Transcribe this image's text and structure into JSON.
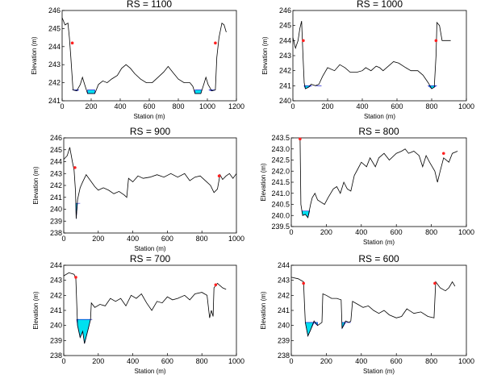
{
  "chart_data": [
    {
      "type": "line",
      "title": "RS = 1100",
      "xlabel": "Station (m)",
      "ylabel": "Elevation (m)",
      "xlim": [
        0,
        1200
      ],
      "ylim": [
        241,
        246
      ],
      "xticks": [
        0,
        200,
        400,
        600,
        800,
        1000,
        1200
      ],
      "yticks": [
        241,
        242,
        243,
        244,
        245,
        246
      ],
      "ground": [
        [
          0,
          245.6
        ],
        [
          20,
          245.2
        ],
        [
          40,
          245.3
        ],
        [
          50,
          244.5
        ],
        [
          60,
          243.4
        ],
        [
          75,
          241.6
        ],
        [
          100,
          241.55
        ],
        [
          125,
          241.9
        ],
        [
          140,
          242.3
        ],
        [
          155,
          241.9
        ],
        [
          175,
          241.4
        ],
        [
          225,
          241.4
        ],
        [
          250,
          241.9
        ],
        [
          280,
          242.1
        ],
        [
          310,
          242.0
        ],
        [
          340,
          242.2
        ],
        [
          380,
          242.4
        ],
        [
          410,
          242.8
        ],
        [
          440,
          243.0
        ],
        [
          470,
          242.8
        ],
        [
          500,
          242.5
        ],
        [
          540,
          242.2
        ],
        [
          580,
          242.0
        ],
        [
          620,
          242.0
        ],
        [
          660,
          242.3
        ],
        [
          700,
          242.6
        ],
        [
          730,
          242.9
        ],
        [
          760,
          242.6
        ],
        [
          800,
          242.2
        ],
        [
          840,
          242.0
        ],
        [
          880,
          242.0
        ],
        [
          900,
          241.8
        ],
        [
          915,
          241.4
        ],
        [
          955,
          241.4
        ],
        [
          975,
          241.9
        ],
        [
          990,
          242.3
        ],
        [
          1005,
          241.9
        ],
        [
          1030,
          241.55
        ],
        [
          1055,
          241.6
        ],
        [
          1065,
          243.4
        ],
        [
          1080,
          244.5
        ],
        [
          1100,
          245.3
        ],
        [
          1115,
          245.2
        ],
        [
          1130,
          244.8
        ]
      ],
      "water": [
        [
          70,
          115,
          241.6
        ],
        [
          175,
          225,
          241.6
        ],
        [
          915,
          960,
          241.6
        ],
        [
          1010,
          1055,
          241.6
        ]
      ],
      "markers": [
        [
          70,
          244.2
        ],
        [
          1055,
          244.2
        ]
      ]
    },
    {
      "type": "line",
      "title": "RS = 1000",
      "xlabel": "Station (m)",
      "ylabel": "Elevation (m)",
      "xlim": [
        0,
        1000
      ],
      "ylim": [
        240,
        246
      ],
      "xticks": [
        0,
        200,
        400,
        600,
        800,
        1000
      ],
      "yticks": [
        240,
        241,
        242,
        243,
        244,
        245,
        246
      ],
      "ground": [
        [
          0,
          244.2
        ],
        [
          15,
          243.5
        ],
        [
          30,
          244.0
        ],
        [
          40,
          244.8
        ],
        [
          50,
          245.3
        ],
        [
          58,
          243.0
        ],
        [
          65,
          241.2
        ],
        [
          72,
          240.8
        ],
        [
          90,
          240.9
        ],
        [
          105,
          241.1
        ],
        [
          130,
          241.0
        ],
        [
          150,
          241.1
        ],
        [
          170,
          241.6
        ],
        [
          200,
          242.2
        ],
        [
          240,
          242.0
        ],
        [
          270,
          242.4
        ],
        [
          300,
          242.2
        ],
        [
          330,
          241.9
        ],
        [
          370,
          241.9
        ],
        [
          400,
          242.0
        ],
        [
          420,
          242.2
        ],
        [
          450,
          242.0
        ],
        [
          480,
          242.3
        ],
        [
          500,
          242.2
        ],
        [
          520,
          242.0
        ],
        [
          550,
          242.3
        ],
        [
          580,
          242.6
        ],
        [
          610,
          242.5
        ],
        [
          650,
          242.2
        ],
        [
          680,
          242.0
        ],
        [
          720,
          242.0
        ],
        [
          750,
          241.7
        ],
        [
          780,
          241.2
        ],
        [
          800,
          240.8
        ],
        [
          815,
          240.9
        ],
        [
          825,
          243.0
        ],
        [
          830,
          245.2
        ],
        [
          845,
          245.0
        ],
        [
          860,
          244.0
        ],
        [
          890,
          244.0
        ],
        [
          910,
          244.0
        ]
      ],
      "water": [
        [
          65,
          110,
          241.0
        ],
        [
          130,
          165,
          241.0
        ],
        [
          780,
          830,
          241.0
        ]
      ],
      "markers": [
        [
          60,
          244.0
        ],
        [
          825,
          244.0
        ]
      ]
    },
    {
      "type": "line",
      "title": "RS = 900",
      "xlabel": "Station (m)",
      "ylabel": "Elevation (m)",
      "xlim": [
        0,
        1000
      ],
      "ylim": [
        238,
        246
      ],
      "xticks": [
        0,
        200,
        400,
        600,
        800,
        1000
      ],
      "yticks": [
        238,
        239,
        240,
        241,
        242,
        243,
        244,
        245,
        246
      ],
      "ground": [
        [
          0,
          244.2
        ],
        [
          20,
          244.5
        ],
        [
          35,
          245.2
        ],
        [
          50,
          244.0
        ],
        [
          60,
          243.3
        ],
        [
          68,
          241.5
        ],
        [
          72,
          239.2
        ],
        [
          80,
          240.8
        ],
        [
          95,
          241.8
        ],
        [
          110,
          242.3
        ],
        [
          130,
          242.9
        ],
        [
          150,
          242.5
        ],
        [
          180,
          241.9
        ],
        [
          200,
          241.6
        ],
        [
          230,
          241.8
        ],
        [
          260,
          241.6
        ],
        [
          290,
          241.3
        ],
        [
          320,
          241.5
        ],
        [
          350,
          241.2
        ],
        [
          365,
          241.0
        ],
        [
          375,
          242.6
        ],
        [
          400,
          242.3
        ],
        [
          430,
          242.8
        ],
        [
          460,
          242.6
        ],
        [
          500,
          242.7
        ],
        [
          540,
          242.9
        ],
        [
          580,
          242.7
        ],
        [
          620,
          243.0
        ],
        [
          660,
          242.7
        ],
        [
          700,
          243.0
        ],
        [
          730,
          242.4
        ],
        [
          760,
          242.7
        ],
        [
          790,
          242.8
        ],
        [
          820,
          242.4
        ],
        [
          850,
          242.0
        ],
        [
          870,
          241.4
        ],
        [
          890,
          241.7
        ],
        [
          905,
          242.9
        ],
        [
          920,
          242.5
        ],
        [
          940,
          242.8
        ],
        [
          960,
          243.0
        ],
        [
          980,
          242.6
        ],
        [
          1000,
          243.0
        ]
      ],
      "water": [
        [
          70,
          95,
          240.5
        ]
      ],
      "markers": [
        [
          65,
          243.5
        ],
        [
          900,
          242.8
        ]
      ]
    },
    {
      "type": "line",
      "title": "RS = 800",
      "xlabel": "Station (m)",
      "ylabel": "Elevation (m)",
      "xlim": [
        0,
        1000
      ],
      "ylim": [
        239.5,
        243.5
      ],
      "xticks": [
        0,
        200,
        400,
        600,
        800,
        1000
      ],
      "yticks": [
        239.5,
        240.0,
        240.5,
        241.0,
        241.5,
        242.0,
        242.5,
        243.0,
        243.5
      ],
      "ground": [
        [
          50,
          243.45
        ],
        [
          55,
          240.5
        ],
        [
          65,
          240.0
        ],
        [
          80,
          240.05
        ],
        [
          95,
          239.9
        ],
        [
          110,
          240.5
        ],
        [
          120,
          240.8
        ],
        [
          135,
          241.0
        ],
        [
          150,
          240.7
        ],
        [
          170,
          240.6
        ],
        [
          190,
          240.5
        ],
        [
          210,
          240.8
        ],
        [
          240,
          241.2
        ],
        [
          260,
          241.3
        ],
        [
          280,
          241.0
        ],
        [
          300,
          241.5
        ],
        [
          320,
          241.2
        ],
        [
          340,
          241.1
        ],
        [
          360,
          241.8
        ],
        [
          380,
          242.1
        ],
        [
          400,
          242.4
        ],
        [
          430,
          242.2
        ],
        [
          450,
          242.6
        ],
        [
          480,
          242.2
        ],
        [
          500,
          242.6
        ],
        [
          530,
          242.8
        ],
        [
          560,
          242.5
        ],
        [
          600,
          242.8
        ],
        [
          630,
          242.9
        ],
        [
          650,
          243.0
        ],
        [
          670,
          242.8
        ],
        [
          700,
          242.9
        ],
        [
          730,
          242.7
        ],
        [
          750,
          242.2
        ],
        [
          770,
          242.7
        ],
        [
          790,
          242.4
        ],
        [
          820,
          242.0
        ],
        [
          835,
          241.5
        ],
        [
          850,
          242.0
        ],
        [
          870,
          242.6
        ],
        [
          900,
          242.4
        ],
        [
          920,
          242.8
        ],
        [
          950,
          242.9
        ]
      ],
      "water": [
        [
          60,
          105,
          240.2
        ]
      ],
      "markers": [
        [
          50,
          243.45
        ],
        [
          870,
          242.8
        ]
      ]
    },
    {
      "type": "line",
      "title": "RS = 700",
      "xlabel": "Station (m)",
      "ylabel": "Elevation (m)",
      "xlim": [
        0,
        1000
      ],
      "ylim": [
        238,
        244
      ],
      "xticks": [
        0,
        200,
        400,
        600,
        800,
        1000
      ],
      "yticks": [
        238,
        239,
        240,
        241,
        242,
        243,
        244
      ],
      "ground": [
        [
          0,
          243.3
        ],
        [
          30,
          243.5
        ],
        [
          60,
          243.4
        ],
        [
          70,
          243.1
        ],
        [
          80,
          240.0
        ],
        [
          95,
          239.2
        ],
        [
          110,
          239.6
        ],
        [
          120,
          238.8
        ],
        [
          140,
          239.7
        ],
        [
          155,
          240.4
        ],
        [
          160,
          241.5
        ],
        [
          180,
          241.2
        ],
        [
          210,
          241.4
        ],
        [
          240,
          241.3
        ],
        [
          270,
          241.8
        ],
        [
          300,
          241.6
        ],
        [
          330,
          241.8
        ],
        [
          360,
          241.3
        ],
        [
          390,
          242.0
        ],
        [
          420,
          241.8
        ],
        [
          450,
          242.1
        ],
        [
          480,
          241.5
        ],
        [
          510,
          241.0
        ],
        [
          540,
          241.6
        ],
        [
          570,
          241.5
        ],
        [
          600,
          241.9
        ],
        [
          630,
          241.7
        ],
        [
          660,
          241.8
        ],
        [
          700,
          242.0
        ],
        [
          730,
          241.7
        ],
        [
          760,
          242.1
        ],
        [
          800,
          242.2
        ],
        [
          830,
          242.0
        ],
        [
          845,
          240.5
        ],
        [
          855,
          241.0
        ],
        [
          865,
          240.6
        ],
        [
          870,
          242.5
        ],
        [
          890,
          242.8
        ],
        [
          920,
          242.5
        ],
        [
          940,
          242.4
        ]
      ],
      "water": [
        [
          75,
          165,
          240.4
        ]
      ],
      "markers": [
        [
          70,
          243.2
        ],
        [
          880,
          242.7
        ]
      ]
    },
    {
      "type": "line",
      "title": "RS = 600",
      "xlabel": "Station (m)",
      "ylabel": "Elevation (m)",
      "xlim": [
        0,
        1000
      ],
      "ylim": [
        238,
        244
      ],
      "xticks": [
        0,
        200,
        400,
        600,
        800,
        1000
      ],
      "yticks": [
        238,
        239,
        240,
        241,
        242,
        243,
        244
      ],
      "ground": [
        [
          0,
          243.2
        ],
        [
          40,
          243.1
        ],
        [
          70,
          242.9
        ],
        [
          75,
          241.5
        ],
        [
          80,
          240.2
        ],
        [
          95,
          239.3
        ],
        [
          110,
          239.7
        ],
        [
          130,
          240.3
        ],
        [
          150,
          240.0
        ],
        [
          175,
          240.2
        ],
        [
          180,
          242.1
        ],
        [
          200,
          242.0
        ],
        [
          230,
          241.8
        ],
        [
          260,
          241.8
        ],
        [
          285,
          241.7
        ],
        [
          290,
          239.8
        ],
        [
          310,
          240.3
        ],
        [
          330,
          240.2
        ],
        [
          340,
          240.3
        ],
        [
          350,
          241.6
        ],
        [
          380,
          241.4
        ],
        [
          410,
          241.2
        ],
        [
          440,
          241.3
        ],
        [
          470,
          241.0
        ],
        [
          500,
          240.8
        ],
        [
          530,
          241.0
        ],
        [
          560,
          240.7
        ],
        [
          600,
          240.5
        ],
        [
          630,
          240.6
        ],
        [
          660,
          241.1
        ],
        [
          700,
          240.8
        ],
        [
          740,
          240.9
        ],
        [
          780,
          240.6
        ],
        [
          815,
          240.5
        ],
        [
          825,
          242.9
        ],
        [
          850,
          242.5
        ],
        [
          880,
          242.3
        ],
        [
          900,
          242.5
        ],
        [
          920,
          242.9
        ],
        [
          935,
          242.6
        ]
      ],
      "water": [
        [
          78,
          150,
          240.2
        ],
        [
          290,
          340,
          240.2
        ]
      ],
      "markers": [
        [
          70,
          242.8
        ],
        [
          820,
          242.8
        ]
      ]
    }
  ]
}
